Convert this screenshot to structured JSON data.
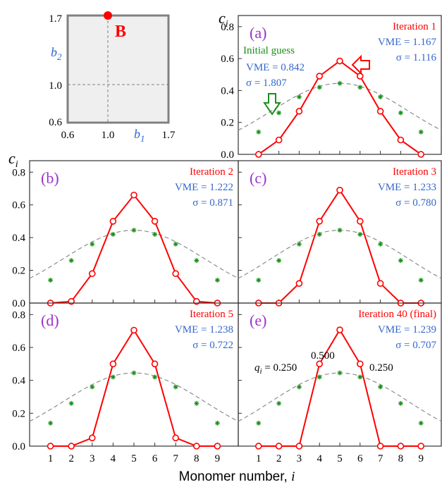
{
  "colors": {
    "red": "#ff0000",
    "green": "#1a8f1a",
    "blue": "#3366cc",
    "purple": "#9933cc",
    "gray_dash": "#8c8c8c",
    "frame": "#808080",
    "inset_fill": "#efefef"
  },
  "inset": {
    "point_label": "B",
    "y_axis_label": "b",
    "y_axis_sub": "2",
    "x_axis_label": "b",
    "x_axis_sub": "1",
    "x_ticks": [
      "0.6",
      "1.0",
      "1.7"
    ],
    "y_ticks": [
      "1.7",
      "1.0",
      "0.6"
    ],
    "point": {
      "b1": 1.0,
      "b2": 1.7
    },
    "range": [
      0.6,
      1.7
    ]
  },
  "y_axis_symbol": "c",
  "y_axis_sub": "i",
  "x_axis_title": "Monomer number, ",
  "x_axis_title_var": "i",
  "x_tick_labels": [
    "1",
    "2",
    "3",
    "4",
    "5",
    "6",
    "7",
    "8",
    "9"
  ],
  "y_tick_labels": [
    "0.8",
    "0.6",
    "0.4",
    "0.2",
    "0.0"
  ],
  "annotations": {
    "initial_guess": "Initial guess",
    "initial_vme": "VME = 0.842",
    "initial_sigma": "σ = 1.807",
    "q_left": "q",
    "q_left_sub": "i",
    "q_left_val": " = 0.250",
    "q_top": "0.500",
    "q_right": "0.250"
  },
  "chart_data": {
    "type": "line",
    "x": [
      1,
      2,
      3,
      4,
      5,
      6,
      7,
      8,
      9
    ],
    "ylim": [
      0,
      0.87
    ],
    "xlim": [
      0,
      10
    ],
    "xlabel": "Monomer number, i",
    "ylabel": "c_i",
    "reference_series": {
      "values": [
        0.14,
        0.26,
        0.36,
        0.42,
        0.445,
        0.42,
        0.36,
        0.26,
        0.14
      ]
    },
    "panels": [
      {
        "id": "(a)",
        "title": "Iteration 1",
        "vme": "VME = 1.167",
        "sigma": "σ = 1.116",
        "values": [
          0.0,
          0.09,
          0.27,
          0.49,
          0.585,
          0.49,
          0.27,
          0.09,
          0.0
        ]
      },
      {
        "id": "(b)",
        "title": "Iteration 2",
        "vme": "VME = 1.222",
        "sigma": "σ = 0.871",
        "values": [
          0.0,
          0.01,
          0.18,
          0.5,
          0.66,
          0.5,
          0.18,
          0.01,
          0.0
        ]
      },
      {
        "id": "(c)",
        "title": "Iteration 3",
        "vme": "VME = 1.233",
        "sigma": "σ = 0.780",
        "values": [
          0.0,
          0.0,
          0.12,
          0.5,
          0.69,
          0.5,
          0.12,
          0.0,
          0.0
        ]
      },
      {
        "id": "(d)",
        "title": "Iteration 5",
        "vme": "VME = 1.238",
        "sigma": "σ = 0.722",
        "values": [
          0.0,
          0.0,
          0.05,
          0.5,
          0.705,
          0.5,
          0.05,
          0.0,
          0.0
        ]
      },
      {
        "id": "(e)",
        "title": "Iteration 40 (final)",
        "vme": "VME = 1.239",
        "sigma": "σ = 0.707",
        "values": [
          0.0,
          0.0,
          0.0,
          0.5,
          0.707,
          0.5,
          0.0,
          0.0,
          0.0
        ]
      }
    ]
  }
}
